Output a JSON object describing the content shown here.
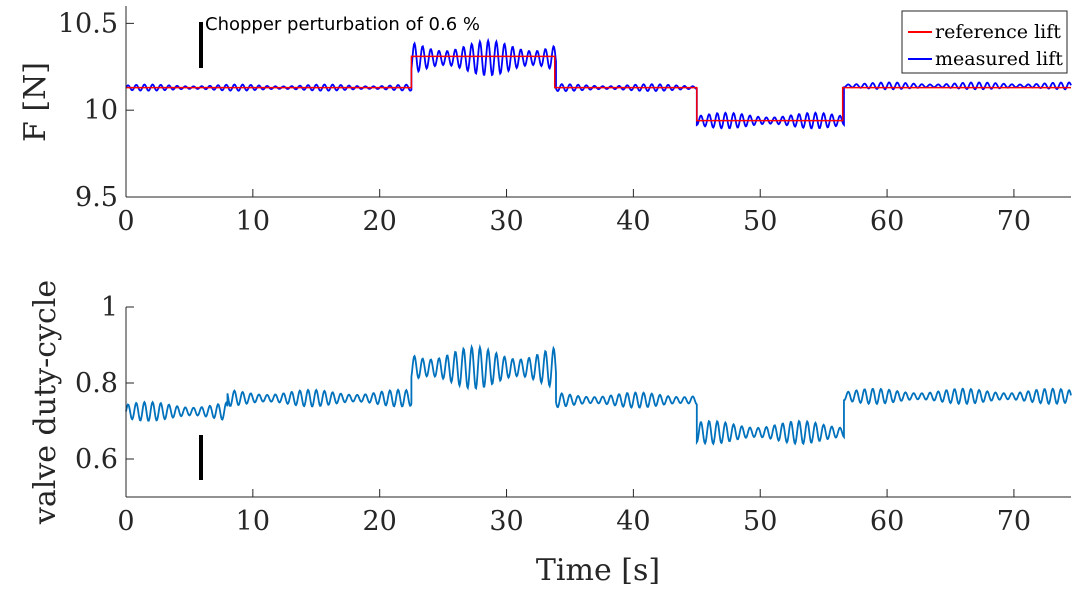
{
  "chart_data": [
    {
      "type": "line",
      "ylabel": "F [N]",
      "xlabel": "",
      "xlim": [
        0,
        74.5
      ],
      "ylim": [
        9.5,
        10.6
      ],
      "xticks": [
        "0",
        "10",
        "20",
        "30",
        "40",
        "50",
        "60",
        "70"
      ],
      "yticks": [
        "9.5",
        "10",
        "10.5"
      ],
      "xtick_values": [
        0,
        10,
        20,
        30,
        40,
        50,
        60,
        70
      ],
      "ytick_values": [
        9.5,
        10,
        10.5
      ],
      "grid": false,
      "legend_position": "top-right",
      "annotation": "Chopper perturbation of 0.6 %",
      "series": [
        {
          "name": "reference lift",
          "color": "#ff0000",
          "style": "step",
          "x": [
            0,
            22.5,
            22.5,
            33.8,
            33.8,
            45.0,
            45.0,
            56.5,
            56.5,
            74.5
          ],
          "y": [
            10.13,
            10.13,
            10.31,
            10.31,
            10.13,
            10.13,
            9.94,
            9.94,
            10.13,
            10.13
          ]
        },
        {
          "name": "measured lift",
          "color": "#0000ff",
          "style": "oscillating",
          "segments": [
            {
              "x0": 0.0,
              "x1": 22.5,
              "mean": 10.13,
              "amp": 0.018
            },
            {
              "x0": 22.5,
              "x1": 33.9,
              "mean": 10.3,
              "amp": 0.1
            },
            {
              "x0": 33.9,
              "x1": 45.0,
              "mean": 10.13,
              "amp": 0.02
            },
            {
              "x0": 45.0,
              "x1": 56.6,
              "mean": 9.94,
              "amp": 0.045
            },
            {
              "x0": 56.6,
              "x1": 74.5,
              "mean": 10.14,
              "amp": 0.02
            }
          ]
        }
      ]
    },
    {
      "type": "line",
      "ylabel": "valve duty-cycle",
      "xlabel": "Time [s]",
      "xlim": [
        0,
        74.5
      ],
      "ylim": [
        0.5,
        1.0
      ],
      "xticks": [
        "0",
        "10",
        "20",
        "30",
        "40",
        "50",
        "60",
        "70"
      ],
      "yticks": [
        "0.6",
        "0.8",
        "1"
      ],
      "xtick_values": [
        0,
        10,
        20,
        30,
        40,
        50,
        60,
        70
      ],
      "ytick_values": [
        0.6,
        0.8,
        1.0
      ],
      "grid": false,
      "series": [
        {
          "color": "#0072bd",
          "style": "oscillating",
          "segments": [
            {
              "x0": 0.0,
              "x1": 8.0,
              "mean": 0.725,
              "amp": 0.025
            },
            {
              "x0": 8.0,
              "x1": 22.5,
              "mean": 0.76,
              "amp": 0.022
            },
            {
              "x0": 22.5,
              "x1": 33.9,
              "mean": 0.84,
              "amp": 0.055
            },
            {
              "x0": 33.9,
              "x1": 45.0,
              "mean": 0.755,
              "amp": 0.02
            },
            {
              "x0": 45.0,
              "x1": 56.6,
              "mean": 0.67,
              "amp": 0.03
            },
            {
              "x0": 56.6,
              "x1": 74.5,
              "mean": 0.765,
              "amp": 0.02
            }
          ]
        }
      ]
    }
  ]
}
